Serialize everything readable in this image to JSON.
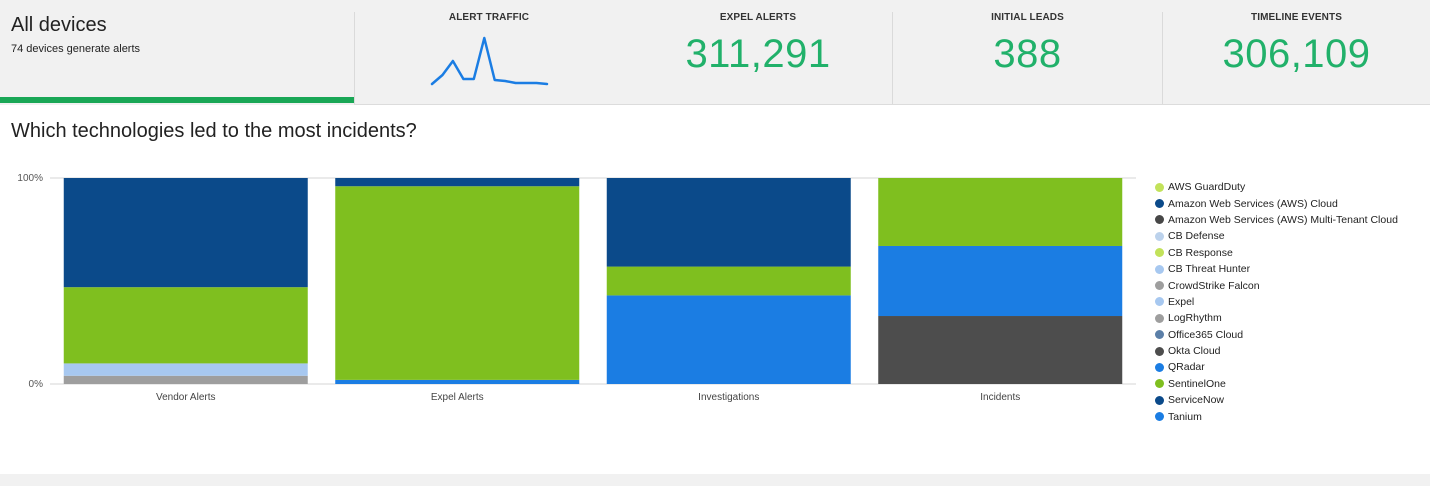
{
  "summary": {
    "title": "All devices",
    "subtitle": "74 devices generate alerts"
  },
  "stats": {
    "alert_traffic": {
      "label": "ALERT TRAFFIC",
      "sparkline": [
        3,
        12,
        26,
        8,
        8,
        49,
        7,
        6,
        4,
        4,
        4,
        3
      ]
    },
    "expel_alerts": {
      "label": "EXPEL ALERTS",
      "value": "311,291"
    },
    "initial_leads": {
      "label": "INITIAL LEADS",
      "value": "388"
    },
    "timeline_events": {
      "label": "TIMELINE EVENTS",
      "value": "306,109"
    }
  },
  "question": "Which technologies led to the most incidents?",
  "chart_data": {
    "type": "bar",
    "stacked": "percent",
    "categories": [
      "Vendor Alerts",
      "Expel Alerts",
      "Investigations",
      "Incidents"
    ],
    "ylim": [
      0,
      100
    ],
    "yticks": [
      "0%",
      "100%"
    ],
    "legend_position": "right",
    "series": [
      {
        "name": "AWS GuardDuty",
        "color": "#c2e25a",
        "values": [
          0,
          0,
          0,
          0
        ]
      },
      {
        "name": "Amazon Web Services (AWS) Cloud",
        "color": "#0b4a8a",
        "values": [
          0,
          0,
          0,
          0
        ]
      },
      {
        "name": "Amazon Web Services (AWS) Multi-Tenant Cloud",
        "color": "#474747",
        "values": [
          0,
          0,
          0,
          0
        ]
      },
      {
        "name": "CB Defense",
        "color": "#bcd2ec",
        "values": [
          0,
          0,
          0,
          0
        ]
      },
      {
        "name": "CB Response",
        "color": "#c2e25a",
        "values": [
          0,
          0,
          0,
          0
        ]
      },
      {
        "name": "CB Threat Hunter",
        "color": "#a7c8f0",
        "values": [
          0,
          0,
          0,
          0
        ]
      },
      {
        "name": "CrowdStrike Falcon",
        "color": "#9e9e9e",
        "values": [
          4,
          0,
          0,
          0
        ]
      },
      {
        "name": "Expel",
        "color": "#a7c8f0",
        "values": [
          6,
          0,
          0,
          0
        ]
      },
      {
        "name": "LogRhythm",
        "color": "#9e9e9e",
        "values": [
          0,
          0,
          0,
          0
        ]
      },
      {
        "name": "Office365 Cloud",
        "color": "#5b7fa8",
        "values": [
          0,
          0,
          0,
          0
        ]
      },
      {
        "name": "Okta Cloud",
        "color": "#4d4d4d",
        "values": [
          0,
          0,
          0,
          33
        ]
      },
      {
        "name": "QRadar",
        "color": "#1b7de3",
        "values": [
          0,
          2,
          43,
          34
        ]
      },
      {
        "name": "SentinelOne",
        "color": "#7fbf1f",
        "values": [
          37,
          94,
          14,
          33
        ]
      },
      {
        "name": "ServiceNow",
        "color": "#0b4a8a",
        "values": [
          53,
          4,
          43,
          0
        ]
      },
      {
        "name": "Tanium",
        "color": "#1b7de3",
        "values": [
          0,
          0,
          0,
          0
        ]
      }
    ]
  }
}
